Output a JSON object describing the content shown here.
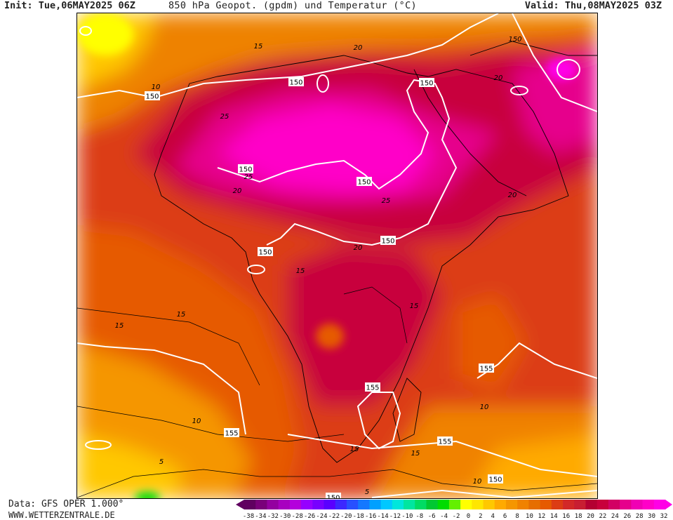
{
  "header": {
    "init": "Init: Tue,06MAY2025 06Z",
    "title": "850 hPa Geopot. (gpdm) und Temperatur (°C)",
    "valid": "Valid: Thu,08MAY2025 03Z"
  },
  "footer": {
    "data_source": "Data: GFS OPER 1.000°",
    "website": "WWW.WETTERZENTRALE.DE"
  },
  "map": {
    "region": "Africa",
    "geopotential_labels": [
      {
        "text": "150"
      },
      {
        "text": "150"
      },
      {
        "text": "150"
      },
      {
        "text": "150"
      },
      {
        "text": "150"
      },
      {
        "text": "150"
      },
      {
        "text": "150"
      },
      {
        "text": "155"
      },
      {
        "text": "155"
      },
      {
        "text": "155"
      },
      {
        "text": "155"
      },
      {
        "text": "150"
      },
      {
        "text": "150"
      }
    ],
    "temperature_labels": [
      "15",
      "20",
      "10",
      "150",
      "25",
      "20",
      "25",
      "20",
      "25",
      "20",
      "20",
      "15",
      "15",
      "15",
      "10",
      "5",
      "15",
      "15",
      "10",
      "10",
      "5",
      "15"
    ],
    "colors": {
      "very_hot": "#ff00c8",
      "hot_magenta": "#e6008c",
      "deep_red": "#c8003c",
      "crimson": "#b40032",
      "red": "#d22828",
      "red_orange": "#dc3c14",
      "orange": "#e65a00",
      "orange_light": "#ee8200",
      "amber": "#f5a000",
      "yellow_orange": "#ffc800",
      "yellow": "#ffff00",
      "green": "#00dc00",
      "contour_white": "#ffffff",
      "contour_black": "#000000"
    }
  },
  "colorbar": {
    "ticks": [
      "-38",
      "-34",
      "-32",
      "-30",
      "-28",
      "-26",
      "-24",
      "-22",
      "-20",
      "-18",
      "-16",
      "-14",
      "-12",
      "-10",
      "-8",
      "-6",
      "-4",
      "-2",
      "0",
      "2",
      "4",
      "6",
      "8",
      "10",
      "12",
      "14",
      "16",
      "18",
      "20",
      "22",
      "24",
      "26",
      "28",
      "30",
      "32"
    ],
    "colors": [
      "#600060",
      "#7a007a",
      "#9400a0",
      "#a800c0",
      "#b400dc",
      "#9600ff",
      "#7800ff",
      "#5a00ff",
      "#3c28ff",
      "#2850ff",
      "#1478ff",
      "#00a0ff",
      "#00c8ff",
      "#00e6dc",
      "#00e6a0",
      "#00dc64",
      "#00c832",
      "#00dc00",
      "#64f000",
      "#ffff00",
      "#ffe600",
      "#ffc800",
      "#ffaa00",
      "#f59600",
      "#f08200",
      "#e66e00",
      "#e65a00",
      "#dc3c14",
      "#d22828",
      "#c81e32",
      "#b40032",
      "#c8003c",
      "#d20064",
      "#e6008c",
      "#f000b4",
      "#ff00c8",
      "#ff00e6"
    ]
  }
}
